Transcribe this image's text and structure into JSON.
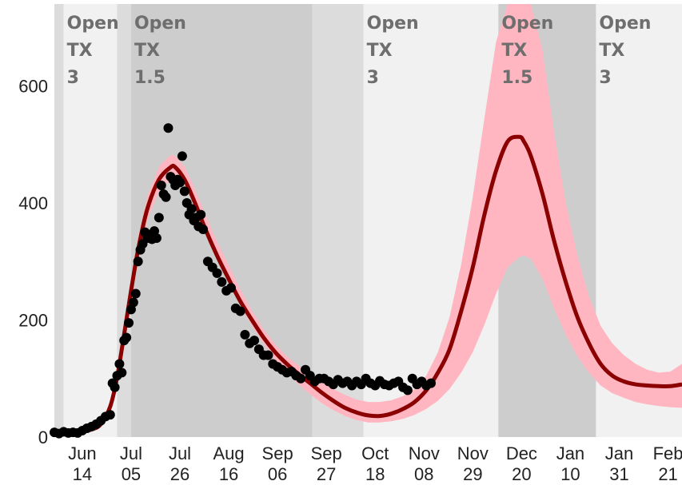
{
  "chart_data": {
    "type": "line",
    "title": "",
    "xlabel": "",
    "ylabel": "",
    "x_ticks": [
      {
        "line1": "Jun",
        "line2": "14",
        "day": 12
      },
      {
        "line1": "Jul",
        "line2": "05",
        "day": 33
      },
      {
        "line1": "Jul",
        "line2": "26",
        "day": 54
      },
      {
        "line1": "Aug",
        "line2": "16",
        "day": 75
      },
      {
        "line1": "Sep",
        "line2": "06",
        "day": 96
      },
      {
        "line1": "Sep",
        "line2": "27",
        "day": 117
      },
      {
        "line1": "Oct",
        "line2": "18",
        "day": 138
      },
      {
        "line1": "Nov",
        "line2": "08",
        "day": 159
      },
      {
        "line1": "Nov",
        "line2": "29",
        "day": 180
      },
      {
        "line1": "Dec",
        "line2": "20",
        "day": 201
      },
      {
        "line1": "Jan",
        "line2": "10",
        "day": 222
      },
      {
        "line1": "Jan",
        "line2": "31",
        "day": 243
      },
      {
        "line1": "Feb",
        "line2": "21",
        "day": 264
      }
    ],
    "y_ticks": [
      0,
      200,
      400,
      600
    ],
    "ylim": [
      0,
      740
    ],
    "colors": {
      "phase_light": "#f1f1f1",
      "phase_dark": "#cdcdcd",
      "phase_mid": "#dcdcdc",
      "band": "#ffb6c1",
      "fit_line": "#8b0000",
      "observed": "#000000"
    },
    "phases": [
      {
        "start": 0,
        "end": 4,
        "shade": "mid",
        "label": []
      },
      {
        "start": 4,
        "end": 27,
        "shade": "light",
        "label": [
          "Open",
          "TX",
          "3"
        ]
      },
      {
        "start": 27,
        "end": 33,
        "shade": "mid",
        "label": []
      },
      {
        "start": 33,
        "end": 111,
        "shade": "dark",
        "label": [
          "Open",
          "TX",
          "1.5"
        ]
      },
      {
        "start": 111,
        "end": 133,
        "shade": "mid",
        "label": []
      },
      {
        "start": 133,
        "end": 191,
        "shade": "light",
        "label": [
          "Open",
          "TX",
          "3"
        ]
      },
      {
        "start": 191,
        "end": 233,
        "shade": "dark",
        "label": [
          "Open",
          "TX",
          "1.5"
        ]
      },
      {
        "start": 233,
        "end": 270,
        "shade": "light",
        "label": [
          "Open",
          "TX",
          "3"
        ]
      }
    ],
    "fit": {
      "x": [
        0,
        10,
        16,
        20,
        24,
        27,
        30,
        33,
        36,
        40,
        45,
        50,
        52,
        56,
        60,
        65,
        70,
        75,
        80,
        85,
        90,
        95,
        100,
        105,
        110,
        115,
        120,
        125,
        130,
        135,
        140,
        145,
        150,
        155,
        160,
        165,
        170,
        175,
        180,
        185,
        190,
        195,
        200,
        202,
        205,
        210,
        215,
        220,
        225,
        230,
        235,
        240,
        245,
        250,
        255,
        260,
        265,
        270
      ],
      "y": [
        5,
        8,
        13,
        22,
        52,
        102,
        175,
        250,
        320,
        390,
        440,
        461,
        461,
        440,
        405,
        355,
        310,
        270,
        232,
        200,
        170,
        145,
        125,
        108,
        92,
        76,
        62,
        50,
        42,
        37,
        36,
        40,
        48,
        60,
        80,
        110,
        150,
        215,
        290,
        380,
        455,
        505,
        513,
        505,
        480,
        415,
        335,
        265,
        205,
        160,
        125,
        105,
        95,
        90,
        88,
        87,
        87,
        90
      ],
      "lower": [
        4,
        7,
        11,
        19,
        45,
        90,
        160,
        232,
        300,
        370,
        420,
        440,
        445,
        430,
        400,
        350,
        305,
        263,
        225,
        190,
        160,
        132,
        110,
        90,
        73,
        58,
        46,
        36,
        29,
        25,
        25,
        27,
        31,
        38,
        48,
        62,
        82,
        110,
        145,
        192,
        245,
        290,
        308,
        310,
        305,
        270,
        220,
        175,
        138,
        110,
        88,
        75,
        67,
        60,
        56,
        53,
        51,
        50
      ],
      "upper": [
        6,
        9,
        15,
        26,
        60,
        115,
        192,
        270,
        342,
        412,
        462,
        482,
        480,
        462,
        428,
        380,
        334,
        293,
        252,
        216,
        184,
        158,
        138,
        122,
        108,
        95,
        82,
        72,
        64,
        60,
        60,
        63,
        70,
        82,
        105,
        145,
        205,
        295,
        410,
        545,
        675,
        740,
        740,
        740,
        740,
        660,
        520,
        400,
        310,
        240,
        190,
        160,
        140,
        125,
        115,
        110,
        112,
        125
      ]
    },
    "observed": {
      "x": [
        0,
        2,
        4,
        6,
        8,
        10,
        12,
        14,
        16,
        18,
        20,
        22,
        24,
        25,
        26,
        27,
        28,
        29,
        30,
        31,
        32,
        33,
        34,
        35,
        36,
        37,
        38,
        39,
        40,
        41,
        42,
        43,
        44,
        45,
        46,
        47,
        48,
        49,
        50,
        51,
        52,
        53,
        54,
        55,
        56,
        57,
        58,
        59,
        60,
        61,
        62,
        63,
        64,
        66,
        68,
        70,
        72,
        74,
        76,
        78,
        80,
        82,
        84,
        86,
        88,
        90,
        92,
        94,
        96,
        98,
        100,
        102,
        104,
        106,
        108,
        110,
        112,
        114,
        116,
        118,
        120,
        122,
        124,
        126,
        128,
        130,
        132,
        134,
        136,
        138,
        140,
        142,
        144,
        146,
        148,
        150,
        152,
        154,
        156,
        158,
        160,
        162
      ],
      "y": [
        8,
        6,
        9,
        7,
        8,
        7,
        11,
        15,
        18,
        22,
        28,
        35,
        38,
        92,
        85,
        105,
        125,
        110,
        165,
        170,
        195,
        218,
        230,
        245,
        300,
        320,
        330,
        350,
        340,
        345,
        338,
        352,
        340,
        375,
        430,
        415,
        410,
        528,
        445,
        440,
        430,
        440,
        435,
        480,
        420,
        400,
        380,
        390,
        370,
        375,
        360,
        380,
        355,
        300,
        290,
        280,
        265,
        250,
        255,
        220,
        215,
        175,
        160,
        165,
        150,
        140,
        140,
        125,
        120,
        115,
        110,
        112,
        105,
        100,
        115,
        105,
        95,
        100,
        100,
        95,
        90,
        98,
        92,
        95,
        88,
        95,
        90,
        100,
        92,
        88,
        96,
        90,
        88,
        92,
        95,
        85,
        80,
        100,
        90,
        95,
        88,
        92
      ]
    }
  }
}
